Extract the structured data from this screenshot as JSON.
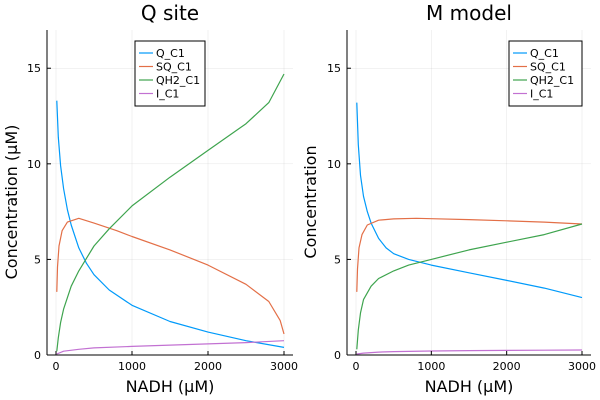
{
  "chart_data": [
    {
      "type": "line",
      "title": "Q site",
      "xlabel": "NADH (μM)",
      "ylabel": "Concentration (μM)",
      "xlim": [
        0,
        3000
      ],
      "ylim": [
        0,
        17
      ],
      "xticks": [
        "0",
        "1000",
        "2000",
        "3000"
      ],
      "yticks": [
        "0",
        "5",
        "10",
        "15"
      ],
      "grid": true,
      "legend_position": "top-right",
      "series": [
        {
          "name": "Q_C1",
          "color": "#009AFA",
          "x": [
            10,
            30,
            60,
            100,
            150,
            200,
            300,
            400,
            500,
            700,
            1000,
            1500,
            2000,
            2500,
            3000
          ],
          "y": [
            13.3,
            11.4,
            9.9,
            8.7,
            7.6,
            6.8,
            5.6,
            4.8,
            4.2,
            3.4,
            2.6,
            1.75,
            1.2,
            0.75,
            0.4
          ]
        },
        {
          "name": "SQ_C1",
          "color": "#E36F47",
          "x": [
            10,
            20,
            40,
            80,
            150,
            300,
            500,
            800,
            1000,
            1500,
            2000,
            2500,
            2800,
            2950,
            3000
          ],
          "y": [
            3.3,
            4.6,
            5.7,
            6.5,
            6.95,
            7.15,
            6.9,
            6.5,
            6.2,
            5.5,
            4.7,
            3.7,
            2.8,
            1.8,
            1.1
          ]
        },
        {
          "name": "QH2_C1",
          "color": "#3EA44E",
          "x": [
            10,
            30,
            60,
            100,
            200,
            300,
            500,
            700,
            1000,
            1500,
            2000,
            2500,
            2800,
            3000
          ],
          "y": [
            0.2,
            0.9,
            1.7,
            2.4,
            3.6,
            4.4,
            5.7,
            6.6,
            7.8,
            9.3,
            10.7,
            12.1,
            13.2,
            14.7
          ]
        },
        {
          "name": "I_C1",
          "color": "#C271D2",
          "x": [
            10,
            100,
            300,
            500,
            1000,
            1500,
            2000,
            2500,
            3000
          ],
          "y": [
            0.05,
            0.2,
            0.3,
            0.37,
            0.45,
            0.52,
            0.58,
            0.65,
            0.75
          ]
        }
      ]
    },
    {
      "type": "line",
      "title": "M model",
      "xlabel": "NADH (μM)",
      "ylabel": "Concentration",
      "xlim": [
        0,
        3000
      ],
      "ylim": [
        0,
        17
      ],
      "xticks": [
        "0",
        "1000",
        "2000",
        "3000"
      ],
      "yticks": [
        "0",
        "5",
        "10",
        "15"
      ],
      "grid": true,
      "legend_position": "top-right",
      "series": [
        {
          "name": "Q_C1",
          "color": "#009AFA",
          "x": [
            10,
            30,
            60,
            100,
            150,
            200,
            300,
            400,
            500,
            700,
            1000,
            1500,
            2000,
            2500,
            3000
          ],
          "y": [
            13.2,
            11.0,
            9.4,
            8.3,
            7.5,
            6.9,
            6.1,
            5.6,
            5.3,
            5.0,
            4.7,
            4.3,
            3.9,
            3.5,
            3.0
          ]
        },
        {
          "name": "SQ_C1",
          "color": "#E36F47",
          "x": [
            10,
            20,
            40,
            80,
            150,
            300,
            500,
            800,
            1000,
            1500,
            2000,
            2500,
            3000
          ],
          "y": [
            3.3,
            4.5,
            5.6,
            6.3,
            6.8,
            7.05,
            7.12,
            7.15,
            7.13,
            7.08,
            7.02,
            6.95,
            6.85
          ]
        },
        {
          "name": "QH2_C1",
          "color": "#3EA44E",
          "x": [
            10,
            30,
            60,
            100,
            200,
            300,
            500,
            700,
            1000,
            1500,
            2000,
            2500,
            3000
          ],
          "y": [
            0.3,
            1.3,
            2.2,
            2.9,
            3.6,
            4.0,
            4.4,
            4.7,
            5.0,
            5.5,
            5.9,
            6.3,
            6.85
          ]
        },
        {
          "name": "I_C1",
          "color": "#C271D2",
          "x": [
            10,
            100,
            300,
            500,
            1000,
            1500,
            2000,
            2500,
            3000
          ],
          "y": [
            0.05,
            0.1,
            0.15,
            0.18,
            0.21,
            0.23,
            0.24,
            0.25,
            0.26
          ]
        }
      ]
    }
  ]
}
